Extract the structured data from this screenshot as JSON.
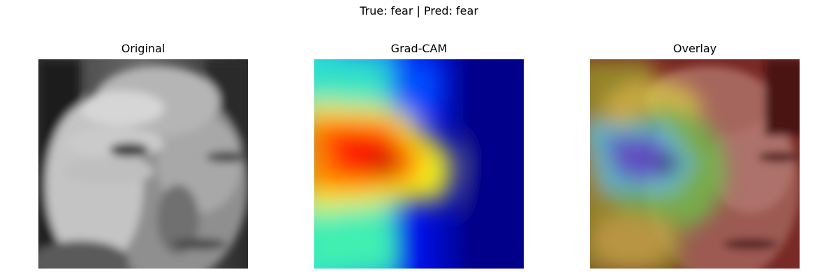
{
  "figure": {
    "suptitle": "True: fear | Pred: fear"
  },
  "panels": [
    {
      "title": "Original"
    },
    {
      "title": "Grad-CAM"
    },
    {
      "title": "Overlay"
    }
  ],
  "colormap": "jet"
}
